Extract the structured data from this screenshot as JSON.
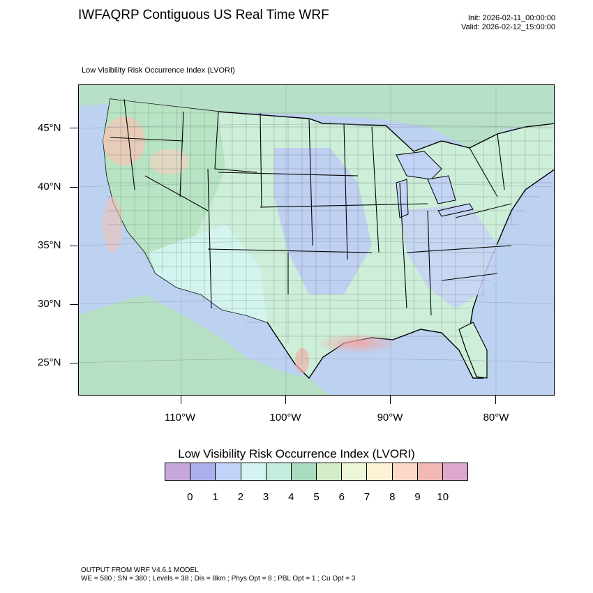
{
  "header": {
    "title": "IWFAQRP Contiguous US Real Time WRF",
    "init": "Init: 2026-02-11_00:00:00",
    "valid": "Valid: 2026-02-12_15:00:00"
  },
  "map": {
    "subtitle": "Low Visibility Risk Occurrence Index   (LVORI)",
    "region": "Contiguous US",
    "lat_labels": [
      "45°N",
      "40°N",
      "35°N",
      "30°N",
      "25°N"
    ],
    "lon_labels": [
      "110°W",
      "100°W",
      "90°W",
      "80°W"
    ],
    "features": [
      "state-boundaries",
      "county-boundaries",
      "coastlines",
      "national-borders",
      "lat-lon-grid"
    ]
  },
  "colorbar": {
    "title": "Low Visibility Risk Occurrence Index  (LVORI)",
    "labels": [
      "0",
      "1",
      "2",
      "3",
      "4",
      "5",
      "6",
      "7",
      "8",
      "9",
      "10"
    ],
    "colors": [
      "#c8a8dc",
      "#aab0ec",
      "#c2d2f8",
      "#d4f4f2",
      "#c4ecdc",
      "#a8dcc0",
      "#d4ecc8",
      "#eef6d8",
      "#fdf2d6",
      "#fbd8c8",
      "#f2b8b4",
      "#dca8cc"
    ]
  },
  "footer": {
    "line1": "OUTPUT FROM WRF V4.6.1 MODEL",
    "line2": "WE = 580 ; SN = 380 ; Levels = 38 ; Dis = 8km ; Phys Opt = 8 ; PBL Opt = 1 ; Cu Opt = 3"
  }
}
